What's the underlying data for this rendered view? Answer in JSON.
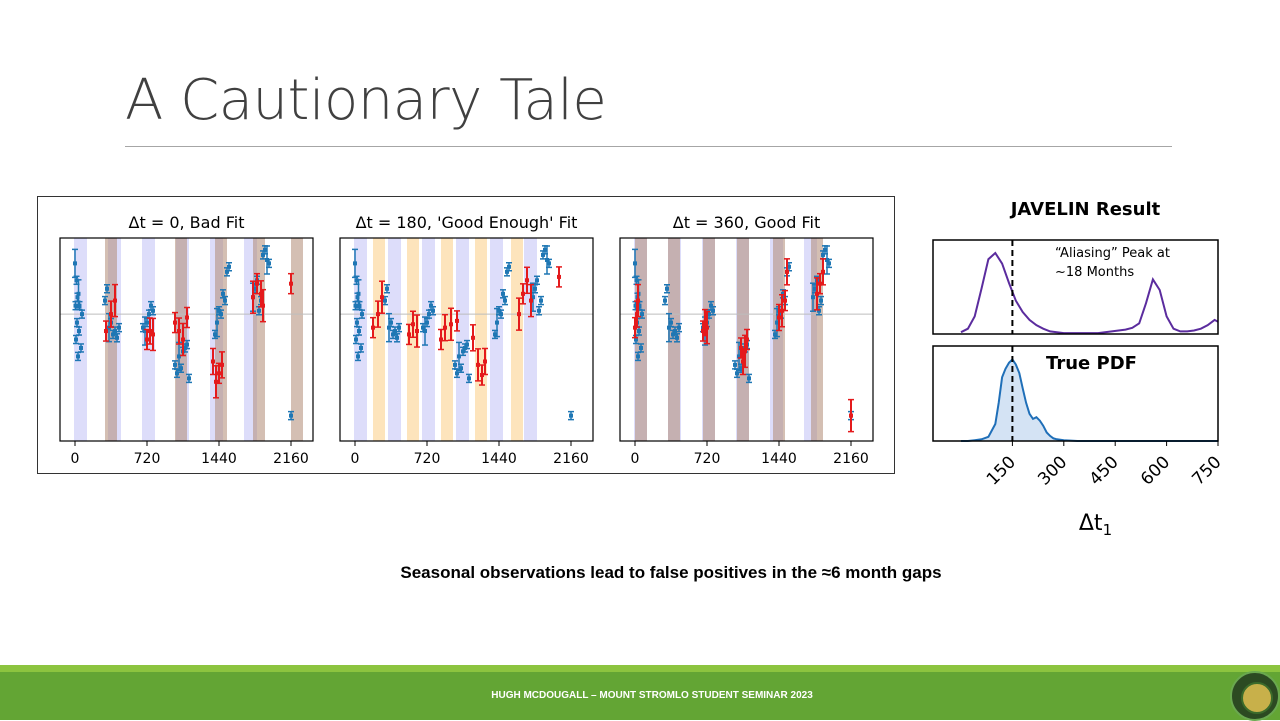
{
  "slide": {
    "title": "A Cautionary Tale",
    "caption": "Seasonal observations lead to false positives in the ≈6 month gaps",
    "footer": "HUGH MCDOUGALL – MOUNT STROMLO STUDENT SEMINAR 2023"
  },
  "colors": {
    "blue_series": "#1f77b4",
    "red_series": "#e41a1c",
    "season_band": "#b3b3f5",
    "delay_band_bad": "#b08a74",
    "delay_band_good": "#fcd9a0",
    "footer_green": "#63a534",
    "footer_light": "#8cc43f",
    "pdf_line": "#5b2c9e",
    "true_pdf_line": "#1f6fb8"
  },
  "chart_data": [
    {
      "type": "scatter",
      "title": "Δt = 0, Bad Fit",
      "xticks": [
        0,
        720,
        1440,
        2160
      ],
      "xlim": [
        -150,
        2380
      ],
      "series": [
        {
          "values": [
            [
              0,
              0.8
            ],
            [
              5,
              0.55
            ],
            [
              10,
              0.35
            ],
            [
              15,
              0.7
            ],
            [
              20,
              0.45
            ],
            [
              25,
              0.6
            ],
            [
              30,
              0.25
            ],
            [
              35,
              0.62
            ],
            [
              40,
              0.4
            ],
            [
              45,
              0.55
            ],
            [
              60,
              0.3
            ],
            [
              70,
              0.5
            ],
            [
              300,
              0.58
            ],
            [
              320,
              0.65
            ],
            [
              340,
              0.42
            ],
            [
              360,
              0.45
            ],
            [
              380,
              0.38
            ],
            [
              400,
              0.4
            ],
            [
              420,
              0.36
            ],
            [
              440,
              0.42
            ],
            [
              680,
              0.42
            ],
            [
              700,
              0.4
            ],
            [
              720,
              0.45
            ],
            [
              740,
              0.5
            ],
            [
              760,
              0.55
            ],
            [
              780,
              0.52
            ],
            [
              1000,
              0.2
            ],
            [
              1020,
              0.15
            ],
            [
              1040,
              0.25
            ],
            [
              1060,
              0.18
            ],
            [
              1080,
              0.28
            ],
            [
              1100,
              0.3
            ],
            [
              1120,
              0.32
            ],
            [
              1140,
              0.12
            ],
            [
              1400,
              0.38
            ],
            [
              1420,
              0.45
            ],
            [
              1440,
              0.52
            ],
            [
              1460,
              0.5
            ],
            [
              1480,
              0.62
            ],
            [
              1500,
              0.58
            ],
            [
              1520,
              0.75
            ],
            [
              1540,
              0.78
            ],
            [
              1780,
              0.6
            ],
            [
              1800,
              0.65
            ],
            [
              1820,
              0.7
            ],
            [
              1840,
              0.52
            ],
            [
              1860,
              0.58
            ],
            [
              1880,
              0.85
            ],
            [
              1900,
              0.88
            ],
            [
              1920,
              0.82
            ],
            [
              1940,
              0.8
            ],
            [
              2160,
              -0.1
            ]
          ]
        },
        {
          "values": [
            [
              310,
              0.4
            ],
            [
              360,
              0.5
            ],
            [
              400,
              0.58
            ],
            [
              720,
              0.35
            ],
            [
              750,
              0.4
            ],
            [
              780,
              0.38
            ],
            [
              1000,
              0.45
            ],
            [
              1040,
              0.4
            ],
            [
              1080,
              0.35
            ],
            [
              1120,
              0.48
            ],
            [
              1380,
              0.22
            ],
            [
              1410,
              0.1
            ],
            [
              1440,
              0.15
            ],
            [
              1470,
              0.2
            ],
            [
              1780,
              0.6
            ],
            [
              1820,
              0.68
            ],
            [
              1860,
              0.62
            ],
            [
              1880,
              0.55
            ],
            [
              2160,
              0.68
            ]
          ]
        }
      ]
    },
    {
      "type": "scatter",
      "title": "Δt = 180, 'Good Enough' Fit",
      "xticks": [
        0,
        720,
        1440,
        2160
      ],
      "xlim": [
        -150,
        2380
      ],
      "series": [
        {
          "values": [
            [
              0,
              0.8
            ],
            [
              5,
              0.55
            ],
            [
              10,
              0.35
            ],
            [
              15,
              0.7
            ],
            [
              20,
              0.45
            ],
            [
              25,
              0.6
            ],
            [
              30,
              0.25
            ],
            [
              35,
              0.62
            ],
            [
              40,
              0.4
            ],
            [
              45,
              0.55
            ],
            [
              60,
              0.3
            ],
            [
              70,
              0.5
            ],
            [
              300,
              0.58
            ],
            [
              320,
              0.65
            ],
            [
              340,
              0.42
            ],
            [
              360,
              0.45
            ],
            [
              380,
              0.38
            ],
            [
              400,
              0.4
            ],
            [
              420,
              0.36
            ],
            [
              440,
              0.42
            ],
            [
              680,
              0.42
            ],
            [
              700,
              0.4
            ],
            [
              720,
              0.45
            ],
            [
              740,
              0.5
            ],
            [
              760,
              0.55
            ],
            [
              780,
              0.52
            ],
            [
              1000,
              0.2
            ],
            [
              1020,
              0.15
            ],
            [
              1040,
              0.25
            ],
            [
              1060,
              0.18
            ],
            [
              1080,
              0.28
            ],
            [
              1100,
              0.3
            ],
            [
              1120,
              0.32
            ],
            [
              1140,
              0.12
            ],
            [
              1400,
              0.38
            ],
            [
              1420,
              0.45
            ],
            [
              1440,
              0.52
            ],
            [
              1460,
              0.5
            ],
            [
              1480,
              0.62
            ],
            [
              1500,
              0.58
            ],
            [
              1520,
              0.75
            ],
            [
              1540,
              0.78
            ],
            [
              1780,
              0.6
            ],
            [
              1800,
              0.65
            ],
            [
              1820,
              0.7
            ],
            [
              1840,
              0.52
            ],
            [
              1860,
              0.58
            ],
            [
              1880,
              0.85
            ],
            [
              1900,
              0.88
            ],
            [
              1920,
              0.82
            ],
            [
              1940,
              0.8
            ],
            [
              2160,
              -0.1
            ]
          ]
        },
        {
          "values": [
            [
              180,
              0.42
            ],
            [
              230,
              0.5
            ],
            [
              270,
              0.6
            ],
            [
              540,
              0.38
            ],
            [
              580,
              0.44
            ],
            [
              620,
              0.4
            ],
            [
              860,
              0.35
            ],
            [
              900,
              0.42
            ],
            [
              960,
              0.44
            ],
            [
              1020,
              0.46
            ],
            [
              1180,
              0.36
            ],
            [
              1230,
              0.2
            ],
            [
              1270,
              0.14
            ],
            [
              1300,
              0.22
            ],
            [
              1640,
              0.5
            ],
            [
              1680,
              0.62
            ],
            [
              1720,
              0.7
            ],
            [
              1760,
              0.58
            ],
            [
              2040,
              0.72
            ]
          ]
        }
      ]
    },
    {
      "type": "scatter",
      "title": "Δt = 360, Good Fit",
      "xticks": [
        0,
        720,
        1440,
        2160
      ],
      "xlim": [
        -150,
        2380
      ],
      "series": [
        {
          "values": [
            [
              0,
              0.8
            ],
            [
              5,
              0.55
            ],
            [
              10,
              0.35
            ],
            [
              15,
              0.7
            ],
            [
              20,
              0.45
            ],
            [
              25,
              0.6
            ],
            [
              30,
              0.25
            ],
            [
              35,
              0.62
            ],
            [
              40,
              0.4
            ],
            [
              45,
              0.55
            ],
            [
              60,
              0.3
            ],
            [
              70,
              0.5
            ],
            [
              300,
              0.58
            ],
            [
              320,
              0.65
            ],
            [
              340,
              0.42
            ],
            [
              360,
              0.45
            ],
            [
              380,
              0.38
            ],
            [
              400,
              0.4
            ],
            [
              420,
              0.36
            ],
            [
              440,
              0.42
            ],
            [
              680,
              0.42
            ],
            [
              700,
              0.4
            ],
            [
              720,
              0.45
            ],
            [
              740,
              0.5
            ],
            [
              760,
              0.55
            ],
            [
              780,
              0.52
            ],
            [
              1000,
              0.2
            ],
            [
              1020,
              0.15
            ],
            [
              1040,
              0.25
            ],
            [
              1060,
              0.18
            ],
            [
              1080,
              0.28
            ],
            [
              1100,
              0.3
            ],
            [
              1120,
              0.32
            ],
            [
              1140,
              0.12
            ],
            [
              1400,
              0.38
            ],
            [
              1420,
              0.45
            ],
            [
              1440,
              0.52
            ],
            [
              1460,
              0.5
            ],
            [
              1480,
              0.62
            ],
            [
              1500,
              0.58
            ],
            [
              1520,
              0.75
            ],
            [
              1540,
              0.78
            ],
            [
              1780,
              0.6
            ],
            [
              1800,
              0.65
            ],
            [
              1820,
              0.7
            ],
            [
              1840,
              0.52
            ],
            [
              1860,
              0.58
            ],
            [
              1880,
              0.85
            ],
            [
              1900,
              0.88
            ],
            [
              1920,
              0.82
            ],
            [
              1940,
              0.8
            ],
            [
              2160,
              -0.1
            ]
          ]
        },
        {
          "values": [
            [
              0,
              0.42
            ],
            [
              20,
              0.5
            ],
            [
              30,
              0.58
            ],
            [
              680,
              0.4
            ],
            [
              700,
              0.45
            ],
            [
              720,
              0.42
            ],
            [
              1060,
              0.3
            ],
            [
              1080,
              0.22
            ],
            [
              1100,
              0.28
            ],
            [
              1120,
              0.35
            ],
            [
              1440,
              0.48
            ],
            [
              1470,
              0.52
            ],
            [
              1500,
              0.58
            ],
            [
              1520,
              0.75
            ],
            [
              1820,
              0.62
            ],
            [
              1850,
              0.68
            ],
            [
              1880,
              0.75
            ],
            [
              2160,
              -0.1
            ]
          ]
        }
      ]
    },
    {
      "type": "line",
      "title": "JAVELIN Result",
      "annotation": "“Aliasing” Peak at ~18 Months",
      "xlim": [
        0,
        750
      ],
      "marker_x": 150,
      "x": [
        0,
        20,
        40,
        60,
        80,
        100,
        120,
        140,
        160,
        180,
        200,
        220,
        240,
        260,
        280,
        300,
        320,
        340,
        360,
        380,
        400,
        420,
        440,
        460,
        480,
        500,
        520,
        540,
        560,
        580,
        600,
        620,
        640,
        660,
        680,
        700,
        720,
        740,
        750
      ],
      "values": [
        0.02,
        0.06,
        0.2,
        0.52,
        0.85,
        0.92,
        0.8,
        0.58,
        0.38,
        0.25,
        0.16,
        0.1,
        0.06,
        0.03,
        0.02,
        0.01,
        0.01,
        0.01,
        0.01,
        0.01,
        0.01,
        0.02,
        0.03,
        0.04,
        0.05,
        0.07,
        0.12,
        0.35,
        0.62,
        0.5,
        0.2,
        0.06,
        0.03,
        0.03,
        0.04,
        0.06,
        0.1,
        0.16,
        0.14
      ]
    },
    {
      "type": "area",
      "title": "True PDF",
      "xlabel": "Δt",
      "xlabel_sub": "1",
      "xticks": [
        150,
        300,
        450,
        600,
        750
      ],
      "xlim": [
        0,
        750
      ],
      "marker_x": 150,
      "x": [
        0,
        20,
        40,
        60,
        80,
        100,
        110,
        120,
        130,
        140,
        150,
        160,
        170,
        180,
        190,
        200,
        210,
        220,
        230,
        240,
        250,
        260,
        270,
        280,
        300,
        320,
        340,
        360,
        380,
        400,
        450,
        500,
        600,
        750
      ],
      "values": [
        0.0,
        0.0,
        0.01,
        0.02,
        0.05,
        0.2,
        0.45,
        0.75,
        0.85,
        0.92,
        0.96,
        0.9,
        0.8,
        0.62,
        0.45,
        0.32,
        0.26,
        0.28,
        0.24,
        0.18,
        0.1,
        0.06,
        0.03,
        0.02,
        0.01,
        0.005,
        0.0,
        0.0,
        0.0,
        0.0,
        0.0,
        0.0,
        0.0,
        0.0
      ]
    }
  ]
}
